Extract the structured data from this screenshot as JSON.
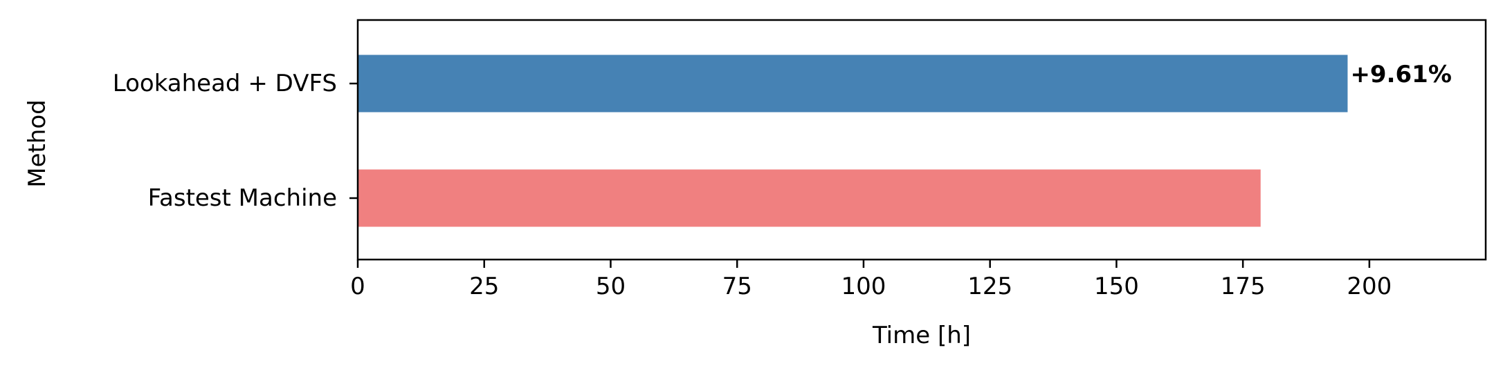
{
  "chart_data": {
    "type": "bar",
    "orientation": "horizontal",
    "categories": [
      "Fastest Machine",
      "Lookahead + DVFS"
    ],
    "values": [
      178.5,
      195.7
    ],
    "colors": [
      "#f08080",
      "#4682b4"
    ],
    "xlabel": "Time [h]",
    "ylabel": "Method",
    "xlim": [
      0,
      223
    ],
    "xticks": [
      0,
      25,
      50,
      75,
      100,
      125,
      150,
      175,
      200
    ],
    "annotations": [
      {
        "category": "Lookahead + DVFS",
        "text": "+9.61%"
      }
    ],
    "grid": false,
    "legend": "none"
  }
}
